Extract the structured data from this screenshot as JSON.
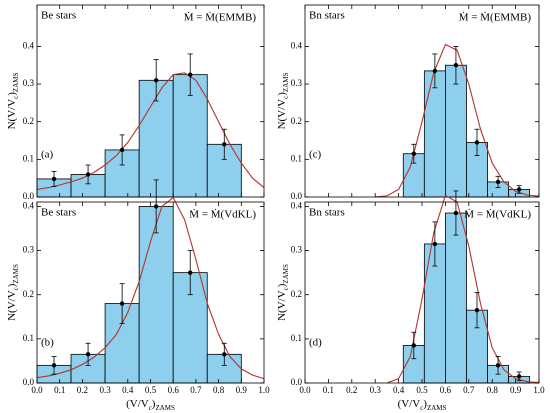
{
  "chart_data": [
    {
      "type": "histogram",
      "annotation": "Be stars",
      "rate_label": "Ṁ = Ṁ(EMMB)",
      "panel_label": "(a)",
      "ylabel": [
        "N(V/V",
        "c",
        ")",
        "ZAMS"
      ],
      "bins": [
        0,
        0.15,
        0.3,
        0.45,
        0.6,
        0.75,
        0.9
      ],
      "values": [
        0.048,
        0.06,
        0.125,
        0.31,
        0.325,
        0.14
      ],
      "errors": [
        0.02,
        0.025,
        0.04,
        0.055,
        0.055,
        0.04
      ],
      "color": "#8ecfee",
      "fit": {
        "color": "#b5332a",
        "x": [
          0,
          0.05,
          0.1,
          0.15,
          0.2,
          0.25,
          0.3,
          0.35,
          0.4,
          0.45,
          0.5,
          0.55,
          0.6,
          0.65,
          0.7,
          0.75,
          0.8,
          0.85,
          0.9,
          0.95,
          1.0
        ],
        "y": [
          0.02,
          0.025,
          0.032,
          0.04,
          0.05,
          0.065,
          0.085,
          0.11,
          0.145,
          0.19,
          0.24,
          0.29,
          0.325,
          0.33,
          0.31,
          0.26,
          0.2,
          0.14,
          0.09,
          0.05,
          0.025
        ]
      },
      "xlim": [
        0,
        1
      ],
      "xticks": [
        0,
        0.1,
        0.2,
        0.3,
        0.4,
        0.5,
        0.6,
        0.7,
        0.8,
        0.9,
        1
      ],
      "ylim": [
        0,
        0.51
      ],
      "yticks": [
        {
          "value": 0,
          "label": "0.0"
        },
        0.1,
        0.2,
        0.3,
        0.4
      ]
    },
    {
      "type": "histogram",
      "annotation": "Bn stars",
      "rate_label": "Ṁ = Ṁ(EMMB)",
      "panel_label": "(c)",
      "ylabel": [
        "N(V/V",
        "c",
        ")",
        "ZAMS"
      ],
      "bins": [
        0.42,
        0.51,
        0.6,
        0.69,
        0.78,
        0.87,
        0.96
      ],
      "values": [
        0.115,
        0.335,
        0.35,
        0.145,
        0.04,
        0.02
      ],
      "errors": [
        0.025,
        0.045,
        0.05,
        0.035,
        0.015,
        0.01
      ],
      "color": "#8ecfee",
      "fit": {
        "color": "#b5332a",
        "x": [
          0.3,
          0.35,
          0.4,
          0.45,
          0.5,
          0.55,
          0.6,
          0.65,
          0.7,
          0.75,
          0.8,
          0.85,
          0.9,
          0.95,
          1.0
        ],
        "y": [
          0,
          0.003,
          0.02,
          0.08,
          0.2,
          0.33,
          0.405,
          0.39,
          0.3,
          0.18,
          0.09,
          0.04,
          0.015,
          0.005,
          0.002
        ]
      },
      "xlim": [
        0,
        1
      ],
      "xticks": [
        0,
        0.1,
        0.2,
        0.3,
        0.4,
        0.5,
        0.6,
        0.7,
        0.8,
        0.9,
        1
      ],
      "ylim": [
        0,
        0.51
      ],
      "yticks": [
        {
          "value": 0,
          "label": "0.0"
        },
        0.1,
        0.2,
        0.3,
        0.4
      ]
    },
    {
      "type": "histogram",
      "annotation": "Be stars",
      "rate_label": "Ṁ = Ṁ(VdKL)",
      "panel_label": "(b)",
      "ylabel": [
        "N(V/V",
        "c",
        ")",
        "ZAMS"
      ],
      "xlabel": [
        "(V/V",
        "c",
        ")",
        "ZAMS"
      ],
      "bins": [
        0,
        0.15,
        0.3,
        0.45,
        0.6,
        0.75,
        0.9
      ],
      "values": [
        0.04,
        0.065,
        0.18,
        0.4,
        0.25,
        0.065
      ],
      "errors": [
        0.02,
        0.025,
        0.045,
        0.06,
        0.05,
        0.025
      ],
      "color": "#8ecfee",
      "fit": {
        "color": "#b5332a",
        "x": [
          0,
          0.05,
          0.1,
          0.15,
          0.2,
          0.25,
          0.3,
          0.35,
          0.4,
          0.45,
          0.5,
          0.55,
          0.6,
          0.65,
          0.7,
          0.75,
          0.8,
          0.85,
          0.9,
          0.95,
          1.0
        ],
        "y": [
          0.012,
          0.016,
          0.022,
          0.03,
          0.042,
          0.058,
          0.08,
          0.11,
          0.16,
          0.23,
          0.32,
          0.4,
          0.42,
          0.37,
          0.28,
          0.18,
          0.11,
          0.06,
          0.032,
          0.018,
          0.01
        ]
      },
      "xlim": [
        0,
        1
      ],
      "xticks": [
        {
          "value": 0,
          "label": "0.0"
        },
        0.1,
        0.2,
        0.3,
        0.4,
        0.5,
        0.6,
        0.7,
        0.8,
        0.9,
        {
          "value": 1,
          "label": "1.0"
        }
      ],
      "ylim": [
        0,
        0.41
      ],
      "yticks": [
        {
          "value": 0,
          "label": "0.0"
        },
        0.1,
        0.2,
        0.3,
        0.4
      ]
    },
    {
      "type": "histogram",
      "annotation": "Bn stars",
      "rate_label": "Ṁ = Ṁ(VdKL)",
      "panel_label": "(d)",
      "ylabel": [
        "N(V/V",
        "c",
        ")",
        "ZAMS"
      ],
      "xlabel": [
        "(V/V",
        "c",
        ")",
        "ZAMS"
      ],
      "bins": [
        0.42,
        0.51,
        0.6,
        0.69,
        0.78,
        0.87,
        0.96
      ],
      "values": [
        0.085,
        0.315,
        0.385,
        0.165,
        0.04,
        0.015
      ],
      "errors": [
        0.03,
        0.05,
        0.05,
        0.04,
        0.02,
        0.01
      ],
      "color": "#8ecfee",
      "fit": {
        "color": "#b5332a",
        "x": [
          0.35,
          0.4,
          0.45,
          0.5,
          0.55,
          0.6,
          0.65,
          0.7,
          0.75,
          0.8,
          0.85,
          0.9,
          0.95,
          1.0
        ],
        "y": [
          0,
          0.01,
          0.06,
          0.19,
          0.34,
          0.425,
          0.41,
          0.31,
          0.18,
          0.08,
          0.03,
          0.01,
          0.003,
          0.001
        ]
      },
      "xlim": [
        0,
        1
      ],
      "xticks": [
        {
          "value": 0,
          "label": "0.0"
        },
        0.1,
        0.2,
        0.3,
        0.4,
        0.5,
        0.6,
        0.7,
        0.8,
        0.9,
        {
          "value": 1,
          "label": "1.0"
        }
      ],
      "ylim": [
        0,
        0.41
      ],
      "yticks": [
        {
          "value": 0,
          "label": "0.0"
        },
        0.1,
        0.2,
        0.3,
        0.4
      ]
    }
  ]
}
